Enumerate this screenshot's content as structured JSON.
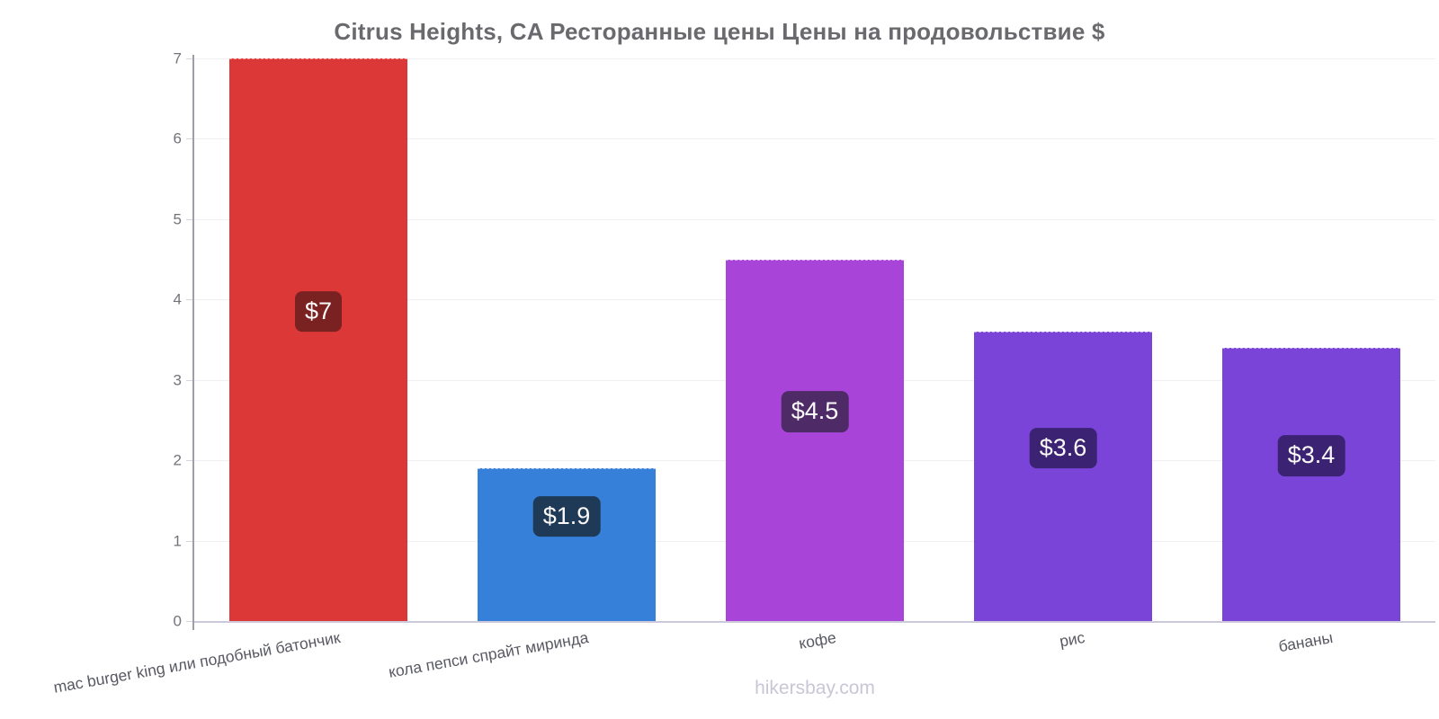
{
  "title": "Citrus Heights, CA Ресторанные цены Цены на продовольствие $",
  "watermark": "hikersbay.com",
  "chart_data": {
    "type": "bar",
    "title": "Citrus Heights, CA Ресторанные цены Цены на продовольствие $",
    "categories": [
      "mac burger king или подобный батончик",
      "кола пепси спрайт миринда",
      "кофе",
      "рис",
      "бананы"
    ],
    "values": [
      7,
      1.9,
      4.5,
      3.6,
      3.4
    ],
    "value_labels": [
      "$7",
      "$1.9",
      "$4.5",
      "$3.6",
      "$3.4"
    ],
    "bar_colors": [
      "#dc3838",
      "#3680d9",
      "#a845d8",
      "#7b44d8",
      "#7b44d8"
    ],
    "value_label_bg": [
      "#7a2122",
      "#1e3a57",
      "#4e2a67",
      "#3b2273",
      "#3b2273"
    ],
    "currency": "$",
    "xlabel": "",
    "ylabel": "",
    "ylim": [
      0,
      7
    ],
    "yticks": [
      0,
      1,
      2,
      3,
      4,
      5,
      6,
      7
    ],
    "grid": true,
    "legend": "none",
    "x_label_rotation_deg": -10
  }
}
